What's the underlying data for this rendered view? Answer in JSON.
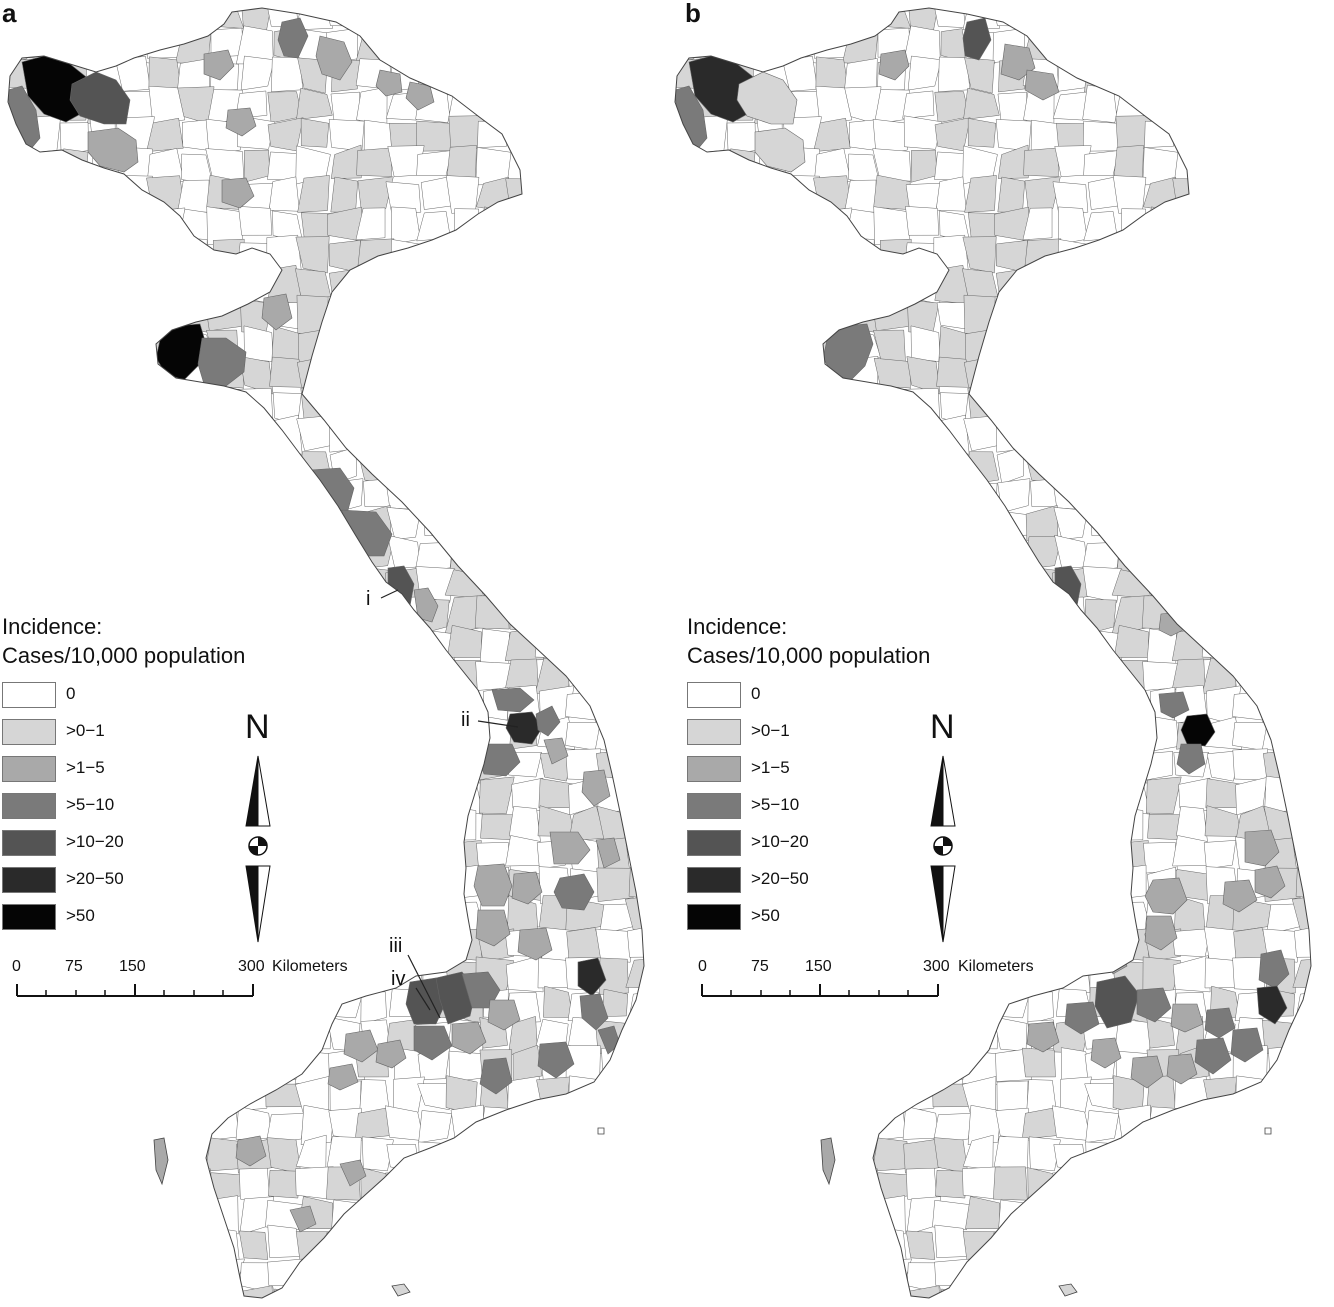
{
  "panels": [
    {
      "id": "a",
      "letter": "a"
    },
    {
      "id": "b",
      "letter": "b"
    }
  ],
  "legend": {
    "title_line1": "Incidence:",
    "title_line2": "Cases/10,000 population",
    "classes": [
      {
        "label": "0",
        "color": "#ffffff"
      },
      {
        "label": ">0−1",
        "color": "#d6d6d6"
      },
      {
        "label": ">1−5",
        "color": "#a9a9a9"
      },
      {
        "label": ">5−10",
        "color": "#7a7a7a"
      },
      {
        "label": ">10−20",
        "color": "#545454"
      },
      {
        "label": ">20−50",
        "color": "#2a2a2a"
      },
      {
        "label": ">50",
        "color": "#050505"
      }
    ]
  },
  "north_arrow": {
    "label": "N"
  },
  "scale_bar": {
    "ticks": [
      "0",
      "75",
      "150",
      "300"
    ],
    "unit": "Kilometers"
  },
  "callouts": {
    "i": "i",
    "ii": "ii",
    "iii": "iii",
    "iv": "iv"
  },
  "colors": {
    "boundary": "#666666",
    "outline": "#444444"
  }
}
